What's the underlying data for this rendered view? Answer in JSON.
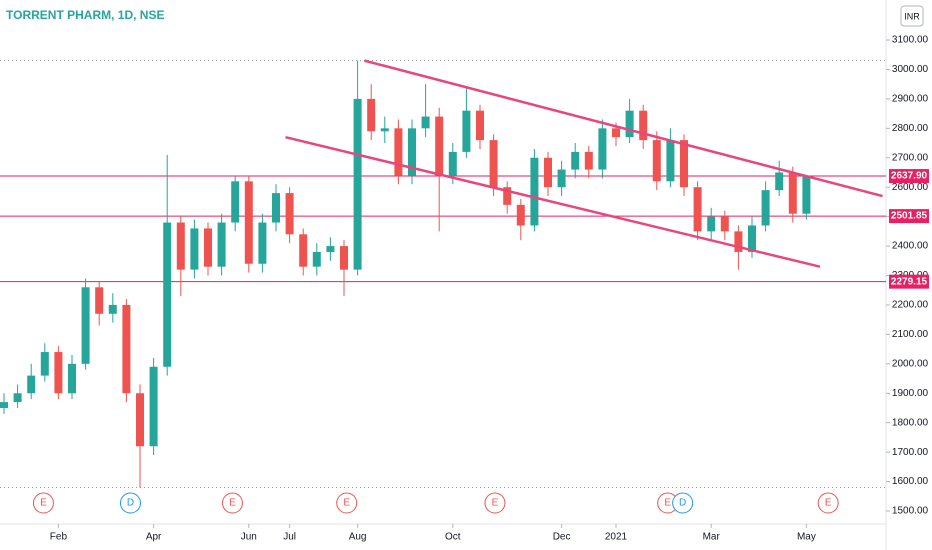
{
  "chart_data": {
    "type": "candlestick",
    "title": "TORRENT PHARM, 1D, NSE",
    "currency": "INR",
    "colors": {
      "up": "#26a69a",
      "down": "#ef5350",
      "level": "#e91e63",
      "trend": "#e8467c",
      "title": "#26a69a"
    },
    "ylim": [
      1500,
      3200
    ],
    "yticks": [
      {
        "value": 1500,
        "label": "1500.00"
      },
      {
        "value": 1600,
        "label": "1600.00"
      },
      {
        "value": 1700,
        "label": "1700.00"
      },
      {
        "value": 1800,
        "label": "1800.00"
      },
      {
        "value": 1900,
        "label": "1900.00"
      },
      {
        "value": 2000,
        "label": "2000.00"
      },
      {
        "value": 2100,
        "label": "2100.00"
      },
      {
        "value": 2200,
        "label": "2200.00"
      },
      {
        "value": 2300,
        "label": "2300.00"
      },
      {
        "value": 2400,
        "label": "2400.00"
      },
      {
        "value": 2500,
        "label": "2500.00"
      },
      {
        "value": 2600,
        "label": "2600.00"
      },
      {
        "value": 2700,
        "label": "2700.00"
      },
      {
        "value": 2800,
        "label": "2800.00"
      },
      {
        "value": 2900,
        "label": "2900.00"
      },
      {
        "value": 3000,
        "label": "3000.00"
      },
      {
        "value": 3100,
        "label": "3100.00"
      }
    ],
    "xticks": [
      {
        "index": 4,
        "label": "Feb"
      },
      {
        "index": 11,
        "label": "Apr"
      },
      {
        "index": 18,
        "label": "Jun"
      },
      {
        "index": 21,
        "label": "Jul"
      },
      {
        "index": 26,
        "label": "Aug"
      },
      {
        "index": 33,
        "label": "Oct"
      },
      {
        "index": 41,
        "label": "Dec"
      },
      {
        "index": 45,
        "label": "2021"
      },
      {
        "index": 52,
        "label": "Mar"
      },
      {
        "index": 59,
        "label": "May"
      }
    ],
    "candles": [
      {
        "open": 1850,
        "high": 1900,
        "low": 1830,
        "close": 1870
      },
      {
        "open": 1870,
        "high": 1930,
        "low": 1850,
        "close": 1900
      },
      {
        "open": 1900,
        "high": 2000,
        "low": 1880,
        "close": 1960
      },
      {
        "open": 1960,
        "high": 2070,
        "low": 1940,
        "close": 2040
      },
      {
        "open": 2040,
        "high": 2060,
        "low": 1880,
        "close": 1900
      },
      {
        "open": 1900,
        "high": 2030,
        "low": 1880,
        "close": 2000
      },
      {
        "open": 2000,
        "high": 2290,
        "low": 1980,
        "close": 2260
      },
      {
        "open": 2260,
        "high": 2280,
        "low": 2130,
        "close": 2170
      },
      {
        "open": 2170,
        "high": 2240,
        "low": 2140,
        "close": 2200
      },
      {
        "open": 2200,
        "high": 2220,
        "low": 1870,
        "close": 1900
      },
      {
        "open": 1900,
        "high": 1930,
        "low": 1580,
        "close": 1720
      },
      {
        "open": 1720,
        "high": 2020,
        "low": 1690,
        "close": 1990
      },
      {
        "open": 1990,
        "high": 2710,
        "low": 1960,
        "close": 2480
      },
      {
        "open": 2480,
        "high": 2500,
        "low": 2230,
        "close": 2320
      },
      {
        "open": 2320,
        "high": 2490,
        "low": 2290,
        "close": 2460
      },
      {
        "open": 2460,
        "high": 2480,
        "low": 2300,
        "close": 2330
      },
      {
        "open": 2330,
        "high": 2510,
        "low": 2300,
        "close": 2480
      },
      {
        "open": 2480,
        "high": 2640,
        "low": 2450,
        "close": 2620
      },
      {
        "open": 2620,
        "high": 2640,
        "low": 2310,
        "close": 2340
      },
      {
        "open": 2340,
        "high": 2510,
        "low": 2310,
        "close": 2480
      },
      {
        "open": 2480,
        "high": 2610,
        "low": 2450,
        "close": 2580
      },
      {
        "open": 2580,
        "high": 2600,
        "low": 2410,
        "close": 2440
      },
      {
        "open": 2440,
        "high": 2460,
        "low": 2300,
        "close": 2330
      },
      {
        "open": 2330,
        "high": 2410,
        "low": 2300,
        "close": 2380
      },
      {
        "open": 2380,
        "high": 2430,
        "low": 2350,
        "close": 2400
      },
      {
        "open": 2400,
        "high": 2420,
        "low": 2230,
        "close": 2320
      },
      {
        "open": 2320,
        "high": 3030,
        "low": 2300,
        "close": 2900
      },
      {
        "open": 2900,
        "high": 2950,
        "low": 2760,
        "close": 2790
      },
      {
        "open": 2790,
        "high": 2840,
        "low": 2750,
        "close": 2800
      },
      {
        "open": 2800,
        "high": 2830,
        "low": 2610,
        "close": 2640
      },
      {
        "open": 2640,
        "high": 2830,
        "low": 2610,
        "close": 2800
      },
      {
        "open": 2800,
        "high": 2950,
        "low": 2770,
        "close": 2840
      },
      {
        "open": 2840,
        "high": 2870,
        "low": 2450,
        "close": 2640
      },
      {
        "open": 2640,
        "high": 2750,
        "low": 2610,
        "close": 2720
      },
      {
        "open": 2720,
        "high": 2940,
        "low": 2700,
        "close": 2860
      },
      {
        "open": 2860,
        "high": 2880,
        "low": 2730,
        "close": 2760
      },
      {
        "open": 2760,
        "high": 2780,
        "low": 2570,
        "close": 2600
      },
      {
        "open": 2600,
        "high": 2620,
        "low": 2510,
        "close": 2540
      },
      {
        "open": 2540,
        "high": 2560,
        "low": 2420,
        "close": 2470
      },
      {
        "open": 2470,
        "high": 2730,
        "low": 2450,
        "close": 2700
      },
      {
        "open": 2700,
        "high": 2720,
        "low": 2570,
        "close": 2600
      },
      {
        "open": 2600,
        "high": 2690,
        "low": 2570,
        "close": 2660
      },
      {
        "open": 2660,
        "high": 2750,
        "low": 2630,
        "close": 2720
      },
      {
        "open": 2720,
        "high": 2740,
        "low": 2630,
        "close": 2660
      },
      {
        "open": 2660,
        "high": 2830,
        "low": 2630,
        "close": 2800
      },
      {
        "open": 2800,
        "high": 2820,
        "low": 2740,
        "close": 2770
      },
      {
        "open": 2770,
        "high": 2900,
        "low": 2750,
        "close": 2860
      },
      {
        "open": 2860,
        "high": 2880,
        "low": 2730,
        "close": 2760
      },
      {
        "open": 2760,
        "high": 2790,
        "low": 2590,
        "close": 2620
      },
      {
        "open": 2620,
        "high": 2800,
        "low": 2600,
        "close": 2760
      },
      {
        "open": 2760,
        "high": 2780,
        "low": 2570,
        "close": 2600
      },
      {
        "open": 2600,
        "high": 2620,
        "low": 2420,
        "close": 2450
      },
      {
        "open": 2450,
        "high": 2530,
        "low": 2420,
        "close": 2500
      },
      {
        "open": 2500,
        "high": 2520,
        "low": 2420,
        "close": 2450
      },
      {
        "open": 2450,
        "high": 2470,
        "low": 2320,
        "close": 2380
      },
      {
        "open": 2380,
        "high": 2500,
        "low": 2360,
        "close": 2470
      },
      {
        "open": 2470,
        "high": 2620,
        "low": 2450,
        "close": 2590
      },
      {
        "open": 2590,
        "high": 2690,
        "low": 2570,
        "close": 2650
      },
      {
        "open": 2650,
        "high": 2670,
        "low": 2480,
        "close": 2510
      },
      {
        "open": 2510,
        "high": 2640,
        "low": 2490,
        "close": 2637.9
      }
    ],
    "levels": [
      {
        "value": 2637.9,
        "label": "2637.90"
      },
      {
        "value": 2501.85,
        "label": "2501.85"
      },
      {
        "value": 2279.15,
        "label": "2279.15"
      }
    ],
    "trendlines": [
      {
        "x": [
          26.5,
          64.6
        ],
        "y": [
          3030,
          2570
        ]
      },
      {
        "x": [
          20.7,
          60
        ],
        "y": [
          2770,
          2330
        ]
      }
    ],
    "events": [
      {
        "index": 2.9,
        "label": "E"
      },
      {
        "index": 9.3,
        "label": "D"
      },
      {
        "index": 16.8,
        "label": "E"
      },
      {
        "index": 25.2,
        "label": "E"
      },
      {
        "index": 36.1,
        "label": "E"
      },
      {
        "index": 48.8,
        "label": "E"
      },
      {
        "index": 49.9,
        "label": "D"
      },
      {
        "index": 60.6,
        "label": "E"
      }
    ]
  }
}
